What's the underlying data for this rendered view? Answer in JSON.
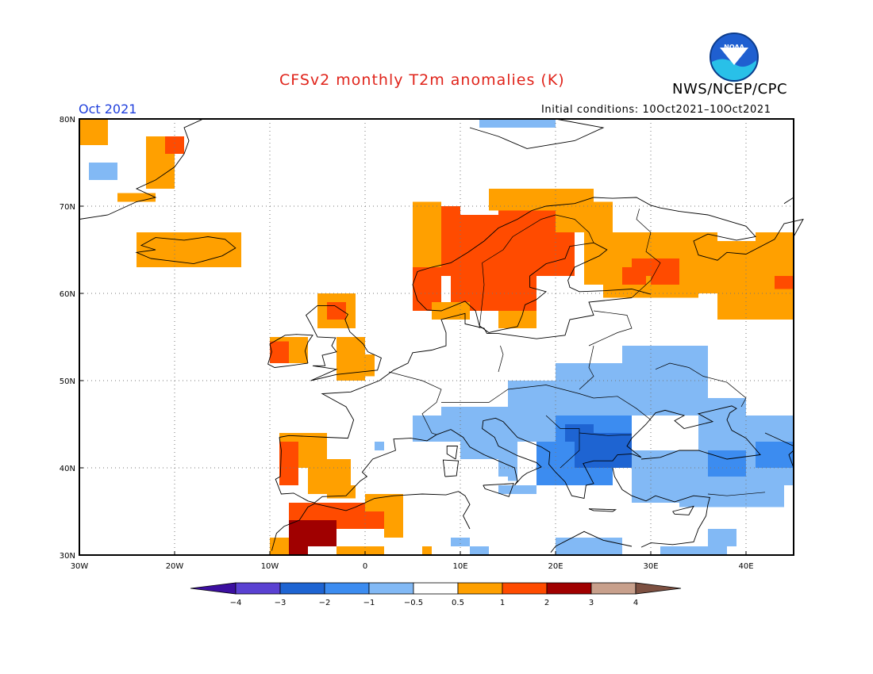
{
  "header": {
    "title": "CFSv2 monthly T2m anomalies (K)",
    "agency": "NWS/NCEP/CPC",
    "period": "Oct 2021",
    "initial_conditions": "Initial conditions: 10Oct2021–10Oct2021",
    "logo_text": "NOAA"
  },
  "map": {
    "lon_range": [
      -30,
      45
    ],
    "lat_range": [
      30,
      80
    ],
    "lat_labels": [
      {
        "lat": 80,
        "text": "80N"
      },
      {
        "lat": 70,
        "text": "70N"
      },
      {
        "lat": 60,
        "text": "60N"
      },
      {
        "lat": 50,
        "text": "50N"
      },
      {
        "lat": 40,
        "text": "40N"
      },
      {
        "lat": 30,
        "text": "30N"
      }
    ],
    "lon_labels": [
      {
        "lon": -30,
        "text": "30W"
      },
      {
        "lon": -20,
        "text": "20W"
      },
      {
        "lon": -10,
        "text": "10W"
      },
      {
        "lon": 0,
        "text": "0"
      },
      {
        "lon": 10,
        "text": "10E"
      },
      {
        "lon": 20,
        "text": "20E"
      },
      {
        "lon": 30,
        "text": "30E"
      },
      {
        "lon": 40,
        "text": "40E"
      }
    ],
    "anomaly_regions": [
      {
        "region": "Scandinavia",
        "category": "1 to 2"
      },
      {
        "region": "Northern Russia",
        "category": "0.5 to 1"
      },
      {
        "region": "Iberia and Northwest Africa",
        "category": "1 to 3"
      },
      {
        "region": "British Isles",
        "category": "0.5 to 2"
      },
      {
        "region": "Balkans",
        "category": "-3 to -1"
      },
      {
        "region": "Black Sea and Anatolia",
        "category": "-2 to -0.5"
      }
    ]
  },
  "colorbar": {
    "colors": [
      "#3c0fa0",
      "#5a41d2",
      "#1e64d2",
      "#3c8cf0",
      "#82b9f5",
      "#ffffff",
      "#ffa000",
      "#ff4b00",
      "#a00000",
      "#c8a08c",
      "#7d5041"
    ],
    "labels": [
      "−4",
      "−3",
      "−2",
      "−1",
      "−0.5",
      "0.5",
      "1",
      "2",
      "3",
      "4"
    ]
  }
}
